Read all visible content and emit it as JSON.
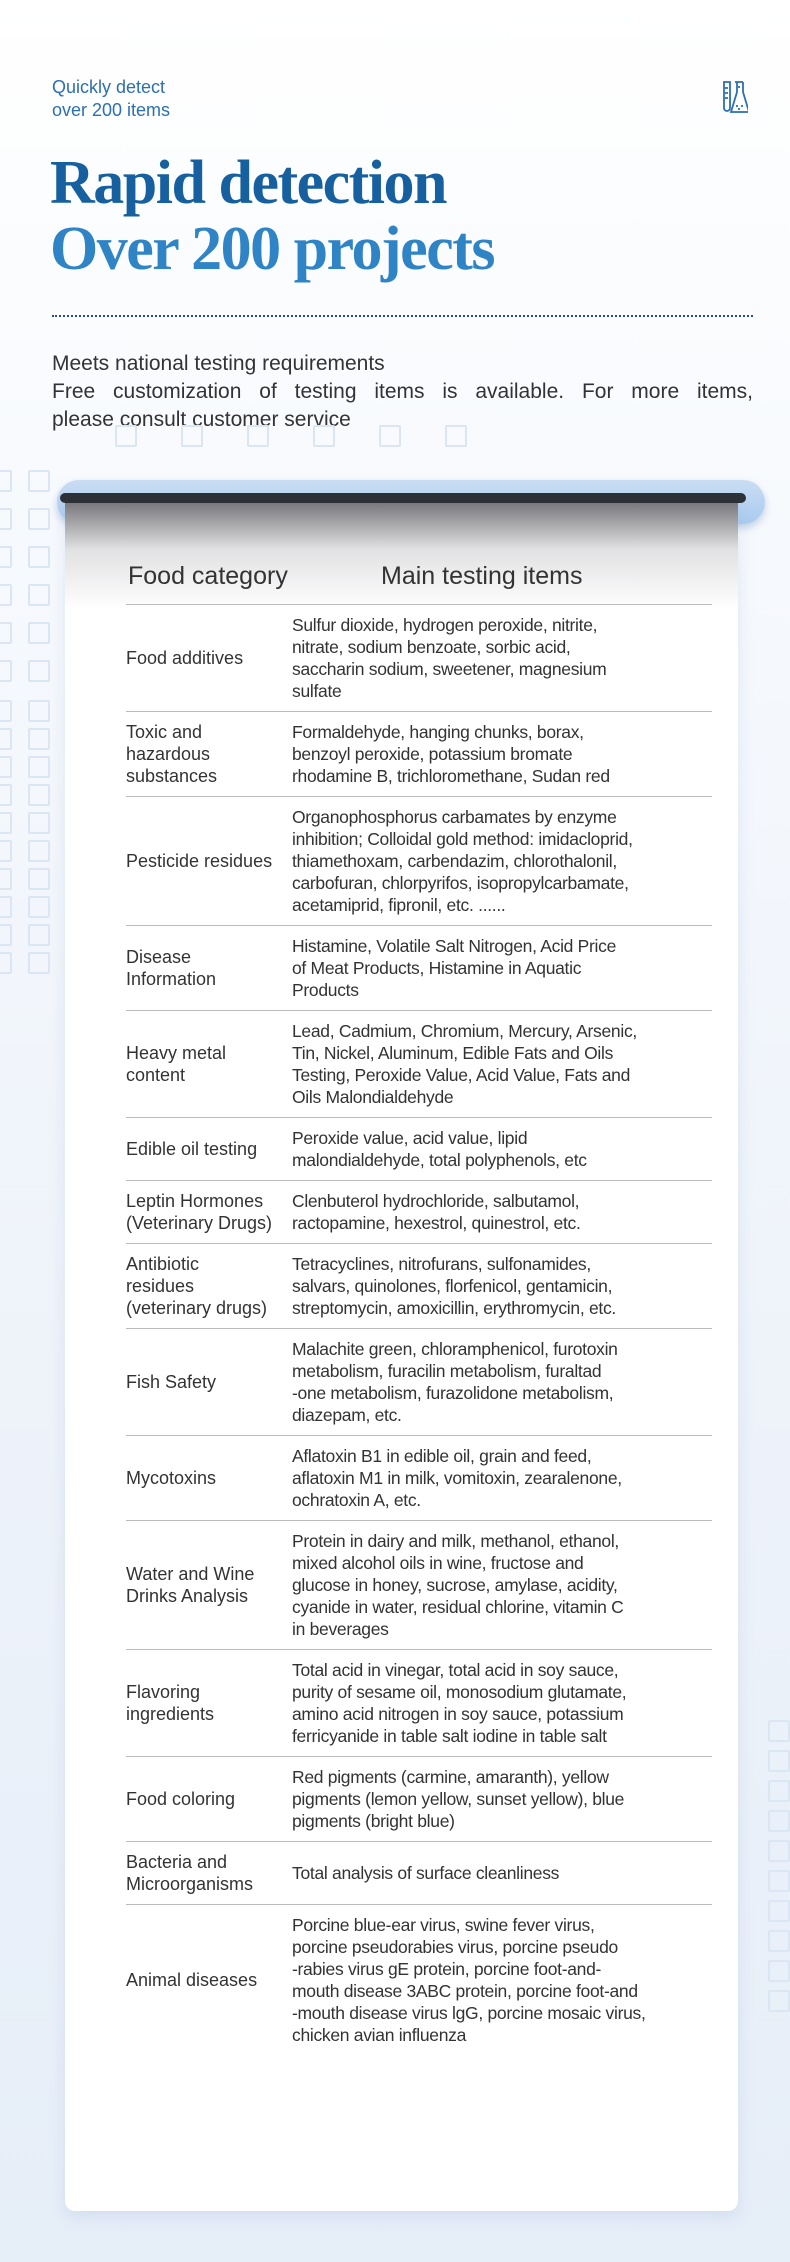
{
  "header": {
    "tagline_lines": [
      "Quickly detect",
      "over 200 items"
    ],
    "icon": "lab-test-tubes-icon",
    "title_line1": "Rapid detection",
    "title_line2": "Over 200 projects",
    "desc_line1": "Meets national testing requirements",
    "desc_line2": "Free customization of testing items is available. For more items,",
    "desc_line3": "please consult customer service"
  },
  "colors": {
    "title_dark": "#17609f",
    "title_light": "#2f84c6",
    "tagline": "#2c6fb3"
  },
  "table": {
    "col1": "Food category",
    "col2": "Main testing items",
    "rows": [
      {
        "category": [
          "Food additives"
        ],
        "items": [
          "Sulfur dioxide, hydrogen peroxide, nitrite,",
          "nitrate, sodium benzoate, sorbic acid,",
          "saccharin sodium, sweetener, magnesium",
          "sulfate"
        ]
      },
      {
        "category": [
          "Toxic and",
          "hazardous",
          "substances"
        ],
        "items": [
          "Formaldehyde, hanging chunks, borax,",
          "benzoyl peroxide, potassium bromate",
          "rhodamine B, trichloromethane, Sudan red"
        ]
      },
      {
        "category": [
          "Pesticide residues"
        ],
        "items": [
          "Organophosphorus carbamates by enzyme",
          "inhibition; Colloidal gold method: imidacloprid,",
          "thiamethoxam, carbendazim, chlorothalonil,",
          "carbofuran, chlorpyrifos, isopropylcarbamate,",
          "acetamiprid, fipronil, etc. ......"
        ]
      },
      {
        "category": [
          "Disease",
          "Information"
        ],
        "items": [
          "Histamine, Volatile Salt Nitrogen, Acid Price",
          "of Meat Products, Histamine in Aquatic",
          "Products"
        ]
      },
      {
        "category": [
          "Heavy metal",
          "content"
        ],
        "items": [
          "Lead, Cadmium, Chromium, Mercury, Arsenic,",
          "Tin, Nickel, Aluminum, Edible Fats and Oils",
          "Testing, Peroxide Value, Acid Value, Fats and",
          "Oils Malondialdehyde"
        ]
      },
      {
        "category": [
          "Edible oil testing"
        ],
        "items": [
          "Peroxide value, acid value, lipid",
          "malondialdehyde, total polyphenols, etc"
        ]
      },
      {
        "category": [
          "Leptin Hormones",
          "(Veterinary Drugs)"
        ],
        "items": [
          "Clenbuterol hydrochloride, salbutamol,",
          "ractopamine, hexestrol, quinestrol, etc."
        ]
      },
      {
        "category": [
          "Antibiotic",
          "residues",
          "(veterinary drugs)"
        ],
        "items": [
          "Tetracyclines, nitrofurans, sulfonamides,",
          "salvars, quinolones, florfenicol, gentamicin,",
          "streptomycin, amoxicillin, erythromycin, etc."
        ]
      },
      {
        "category": [
          "Fish Safety"
        ],
        "items": [
          "Malachite green, chloramphenicol, furotoxin",
          "metabolism, furacilin metabolism, furaltad",
          "-one metabolism, furazolidone metabolism,",
          "diazepam, etc."
        ]
      },
      {
        "category": [
          "Mycotoxins"
        ],
        "items": [
          "Aflatoxin B1 in edible oil, grain and feed,",
          "aflatoxin M1 in milk, vomitoxin, zearalenone,",
          "ochratoxin A, etc."
        ]
      },
      {
        "category": [
          "Water and Wine",
          "Drinks Analysis"
        ],
        "items": [
          "Protein in dairy and milk, methanol, ethanol,",
          "mixed alcohol oils in wine, fructose and",
          "glucose in honey, sucrose, amylase, acidity,",
          "cyanide in water, residual chlorine, vitamin C",
          "in beverages"
        ]
      },
      {
        "category": [
          "Flavoring",
          "ingredients"
        ],
        "items": [
          "Total acid in vinegar, total acid in soy sauce,",
          "purity of sesame oil, monosodium glutamate,",
          "amino acid nitrogen in soy sauce, potassium",
          "ferricyanide in table salt iodine in table salt"
        ]
      },
      {
        "category": [
          "Food coloring"
        ],
        "items": [
          "Red pigments (carmine, amaranth), yellow",
          "pigments (lemon yellow, sunset yellow), blue",
          "pigments (bright blue)"
        ]
      },
      {
        "category": [
          "Bacteria and",
          "Microorganisms"
        ],
        "items": [
          "Total analysis of surface cleanliness"
        ]
      },
      {
        "category": [
          "Animal diseases"
        ],
        "items": [
          "Porcine blue-ear virus, swine fever virus,",
          "porcine pseudorabies virus, porcine pseudo",
          "-rabies virus gE protein, porcine foot-and-",
          "mouth disease 3ABC protein, porcine foot-and",
          "-mouth disease virus lgG, porcine mosaic virus,",
          "chicken avian influenza"
        ]
      }
    ]
  }
}
